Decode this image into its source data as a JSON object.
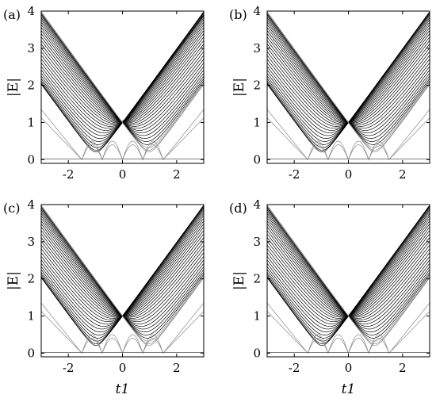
{
  "chart_data": [
    {
      "type": "line",
      "panel_label": "(a)",
      "ylabel": "|E|",
      "xlabel": "",
      "xlim": [
        -3,
        3
      ],
      "ylim": [
        -0.1,
        4
      ],
      "xticks": [
        "-2",
        "0",
        "2"
      ],
      "xtick_values": [
        -2,
        0,
        2
      ],
      "yticks": [
        "0",
        "1",
        "2",
        "3",
        "4"
      ],
      "ytick_values": [
        0,
        1,
        2,
        3,
        4
      ],
      "n_bands": 30,
      "gap_center": 1.05,
      "edge_state_curve": true,
      "zero_mode": 0.02,
      "low_bands": "oscillating arcs with minima at t1 = ±1.5, 0 and ±0.5 envelope",
      "max_band": "|E| ≈ |t1| + 1 at large |t1|",
      "grid": false
    },
    {
      "type": "line",
      "panel_label": "(b)",
      "ylabel": "|E|",
      "xlabel": "",
      "xlim": [
        -3,
        3
      ],
      "ylim": [
        -0.1,
        4
      ],
      "xticks": [
        "-2",
        "0",
        "2"
      ],
      "xtick_values": [
        -2,
        0,
        2
      ],
      "yticks": [
        "0",
        "1",
        "2",
        "3",
        "4"
      ],
      "ytick_values": [
        0,
        1,
        2,
        3,
        4
      ],
      "n_bands": 30,
      "gap_center": 1.05,
      "edge_state_curve": false,
      "zero_mode": 0.02,
      "grid": false
    },
    {
      "type": "line",
      "panel_label": "(c)",
      "ylabel": "|E|",
      "xlabel": "t1",
      "xlim": [
        -3,
        3
      ],
      "ylim": [
        -0.1,
        4
      ],
      "xticks": [
        "-2",
        "0",
        "2"
      ],
      "xtick_values": [
        -2,
        0,
        2
      ],
      "yticks": [
        "0",
        "1",
        "2",
        "3",
        "4"
      ],
      "ytick_values": [
        0,
        1,
        2,
        3,
        4
      ],
      "n_bands": 30,
      "gap_center": 1.05,
      "edge_state_curve": false,
      "zero_mode": 0.02,
      "grid": false
    },
    {
      "type": "line",
      "panel_label": "(d)",
      "ylabel": "|E|",
      "xlabel": "t1",
      "xlim": [
        -3,
        3
      ],
      "ylim": [
        -0.1,
        4
      ],
      "xticks": [
        "-2",
        "0",
        "2"
      ],
      "xtick_values": [
        -2,
        0,
        2
      ],
      "yticks": [
        "0",
        "1",
        "2",
        "3",
        "4"
      ],
      "ytick_values": [
        0,
        1,
        2,
        3,
        4
      ],
      "n_bands": 30,
      "gap_center": 1.05,
      "edge_state_curve": false,
      "zero_mode": 0.02,
      "grid": false
    }
  ],
  "colors": {
    "bands": "#000000",
    "low_bands": "#8a8a8a",
    "background": "#ffffff"
  }
}
